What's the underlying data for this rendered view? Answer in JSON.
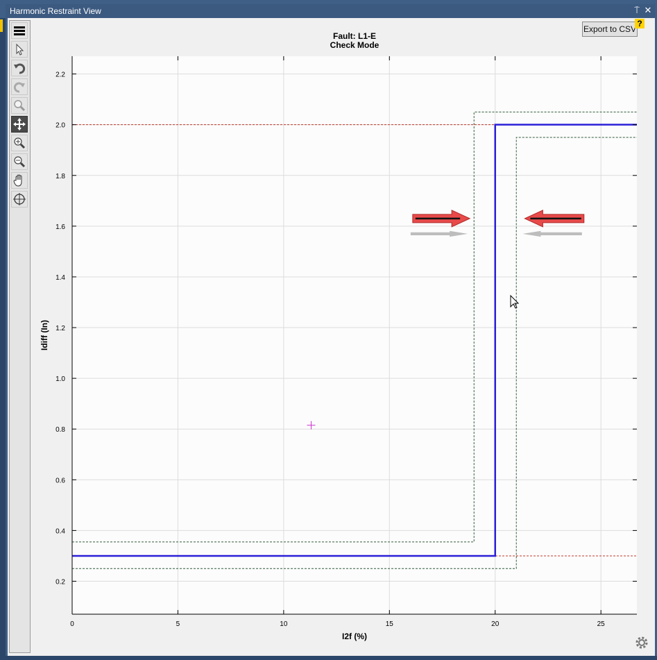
{
  "window": {
    "title": "Harmonic Restraint View",
    "pin_symbol": "⍑",
    "close_symbol": "✕"
  },
  "toolbar": {
    "tools": [
      {
        "name": "menu-icon"
      },
      {
        "name": "select-pointer-icon"
      },
      {
        "name": "undo-icon"
      },
      {
        "name": "redo-icon"
      },
      {
        "name": "zoom-icon"
      },
      {
        "name": "pan-move-icon",
        "active": true
      },
      {
        "name": "zoom-in-icon"
      },
      {
        "name": "zoom-out-icon"
      },
      {
        "name": "hand-icon"
      },
      {
        "name": "crosshair-target-icon"
      }
    ]
  },
  "export_button": {
    "label": "Export to CSV"
  },
  "help_icon": {
    "label": "?"
  },
  "colors": {
    "characteristic": "#2a1fd8",
    "tolerance": "#2f5a3a",
    "reference": "#c0392b",
    "marker": "#cc33cc",
    "arrow": "#e84a4a"
  },
  "chart_data": {
    "type": "line",
    "title": "Fault: L1-E",
    "subtitle": "Check Mode",
    "xlabel": "I2f (%)",
    "ylabel": "Idiff (In)",
    "xlim": [
      0,
      26.7
    ],
    "ylim": [
      0.07,
      2.27
    ],
    "xticks": [
      "0",
      "5",
      "10",
      "15",
      "20",
      "25"
    ],
    "yticks": [
      "0.2",
      "0.4",
      "0.6",
      "0.8",
      "1.0",
      "1.2",
      "1.4",
      "1.6",
      "1.8",
      "2.0",
      "2.2"
    ],
    "grid": true,
    "series": [
      {
        "role": "characteristic",
        "points": [
          [
            0,
            0.3
          ],
          [
            20,
            0.3
          ],
          [
            20,
            2.0
          ],
          [
            26.7,
            2.0
          ]
        ]
      },
      {
        "role": "tolerance-upper",
        "points": [
          [
            0,
            0.355
          ],
          [
            19,
            0.355
          ],
          [
            19,
            2.05
          ],
          [
            26.7,
            2.05
          ]
        ]
      },
      {
        "role": "tolerance-lower",
        "points": [
          [
            0,
            0.25
          ],
          [
            21,
            0.25
          ],
          [
            21,
            1.95
          ],
          [
            26.7,
            1.95
          ]
        ]
      }
    ],
    "reference_lines": [
      0.3,
      2.0
    ],
    "test_point": [
      11.3,
      0.815
    ],
    "arrows": [
      {
        "direction": "right",
        "x": [
          16.1,
          18.8
        ],
        "y": 1.63
      },
      {
        "direction": "left",
        "x": [
          21.4,
          24.2
        ],
        "y": 1.63
      }
    ]
  }
}
